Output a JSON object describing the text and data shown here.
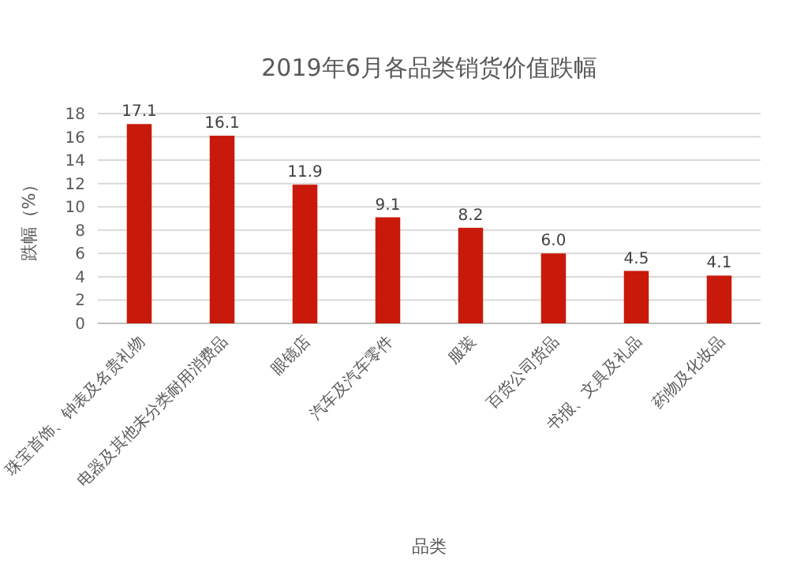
{
  "chart_data": {
    "type": "bar",
    "title": "2019年6月各品类销货价值跌幅",
    "xlabel": "品类",
    "ylabel": "跌幅（%）",
    "categories": [
      "珠宝首饰、钟表及名贵礼物",
      "电器及其他未分类耐用消费品",
      "眼镜店",
      "汽车及汽车零件",
      "服装",
      "百货公司货品",
      "书报、文具及礼品",
      "药物及化妆品"
    ],
    "values": [
      17.1,
      16.1,
      11.9,
      9.1,
      8.2,
      6.0,
      4.5,
      4.1
    ],
    "value_labels": [
      "17.1",
      "16.1",
      "11.9",
      "9.1",
      "8.2",
      "6.0",
      "4.5",
      "4.1"
    ],
    "color": "#c8190a",
    "ylim": [
      0,
      18
    ],
    "yticks": [
      0,
      2,
      4,
      6,
      8,
      10,
      12,
      14,
      16,
      18
    ],
    "grid": "y"
  }
}
